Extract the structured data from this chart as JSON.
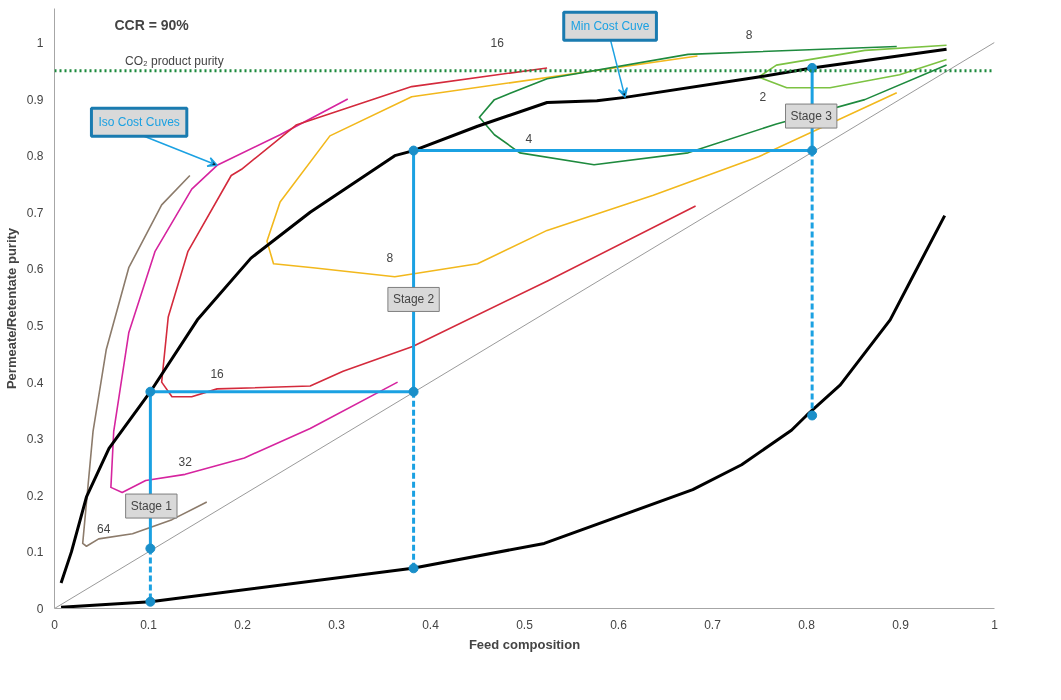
{
  "chart_data": {
    "type": "line",
    "title": "CCR = 90%",
    "xlabel": "Feed composition",
    "ylabel": "Permeate/Retentate purity",
    "xlim": [
      0,
      1
    ],
    "ylim": [
      0,
      1.06
    ],
    "xticks": [
      0,
      0.1,
      0.2,
      0.3,
      0.4,
      0.5,
      0.6,
      0.7,
      0.8,
      0.9,
      1
    ],
    "yticks": [
      0,
      0.1,
      0.2,
      0.3,
      0.4,
      0.5,
      0.6,
      0.7,
      0.8,
      0.9,
      1
    ],
    "grid": false,
    "series": [
      {
        "color": "#808080",
        "x": [
          0,
          1
        ],
        "values": [
          0,
          1
        ]
      },
      {
        "color": "#8c7b6b",
        "x": [
          0.144,
          0.114,
          0.079,
          0.055,
          0.041,
          0.03,
          0.034,
          0.047,
          0.083,
          0.125,
          0.162
        ],
        "values": [
          0.765,
          0.713,
          0.602,
          0.457,
          0.313,
          0.115,
          0.11,
          0.123,
          0.132,
          0.157,
          0.188
        ]
      },
      {
        "color": "#d6249f",
        "x": [
          0.312,
          0.24,
          0.173,
          0.146,
          0.107,
          0.079,
          0.063,
          0.06,
          0.072,
          0.097,
          0.139,
          0.202,
          0.272,
          0.365
        ],
        "values": [
          0.9,
          0.837,
          0.783,
          0.741,
          0.631,
          0.487,
          0.313,
          0.214,
          0.205,
          0.226,
          0.237,
          0.266,
          0.318,
          0.4
        ]
      },
      {
        "color": "#d42a3c",
        "x": [
          0.524,
          0.38,
          0.257,
          0.199,
          0.188,
          0.142,
          0.121,
          0.114,
          0.125,
          0.146,
          0.173,
          0.272,
          0.307,
          0.381,
          0.525,
          0.682
        ],
        "values": [
          0.955,
          0.922,
          0.854,
          0.776,
          0.765,
          0.631,
          0.515,
          0.4,
          0.374,
          0.374,
          0.388,
          0.393,
          0.419,
          0.463,
          0.579,
          0.711
        ]
      },
      {
        "color": "#f2b81c",
        "x": [
          0.684,
          0.38,
          0.293,
          0.24,
          0.226,
          0.233,
          0.275,
          0.362,
          0.45,
          0.524,
          0.637,
          0.749,
          0.896
        ],
        "values": [
          0.976,
          0.904,
          0.835,
          0.718,
          0.649,
          0.609,
          0.602,
          0.586,
          0.609,
          0.668,
          0.73,
          0.798,
          0.911
        ]
      },
      {
        "color": "#1e8a3e",
        "x": [
          0.896,
          0.674,
          0.524,
          0.468,
          0.452,
          0.468,
          0.495,
          0.574,
          0.674,
          0.768,
          0.862,
          0.949
        ],
        "values": [
          0.993,
          0.979,
          0.936,
          0.899,
          0.868,
          0.837,
          0.805,
          0.784,
          0.805,
          0.856,
          0.899,
          0.96
        ]
      },
      {
        "color": "#7cc242",
        "x": [
          0.949,
          0.862,
          0.768,
          0.749,
          0.779,
          0.825,
          0.899,
          0.949
        ],
        "values": [
          0.995,
          0.986,
          0.96,
          0.939,
          0.92,
          0.92,
          0.943,
          0.97
        ]
      },
      {
        "color": "#000000",
        "x": [
          0.007,
          0.102,
          0.381,
          0.521,
          0.679,
          0.731,
          0.784,
          0.8,
          0.836,
          0.889,
          0.911,
          0.947
        ],
        "values": [
          0.002,
          0.012,
          0.071,
          0.115,
          0.21,
          0.254,
          0.315,
          0.341,
          0.395,
          0.51,
          0.58,
          0.694
        ]
      },
      {
        "color": "#000000",
        "x": [
          0.007,
          0.018,
          0.034,
          0.058,
          0.102,
          0.152,
          0.209,
          0.272,
          0.362,
          0.382,
          0.45,
          0.524,
          0.577,
          0.607,
          0.749,
          0.806,
          0.949
        ],
        "values": [
          0.045,
          0.1,
          0.197,
          0.283,
          0.383,
          0.51,
          0.619,
          0.7,
          0.8,
          0.809,
          0.852,
          0.894,
          0.897,
          0.903,
          0.939,
          0.955,
          0.988
        ]
      },
      {
        "color": "#1ba1e2",
        "x": [
          0.102,
          0.102,
          0.382,
          0.382,
          0.806,
          0.806
        ],
        "values": [
          0.106,
          0.383,
          0.383,
          0.809,
          0.809,
          0.955
        ]
      },
      {
        "color": "#1ba1e2",
        "line_style": "dashed",
        "x": [
          0.102,
          0.102,
          0.2,
          0.382,
          0.382,
          0.6,
          0.806,
          0.806
        ],
        "values": [
          0.106,
          0.012,
          null,
          0.383,
          0.071,
          null,
          0.809,
          0.341
        ]
      },
      {
        "type": "scatter",
        "marker": "circle",
        "color": "#1a8fc9",
        "x": [
          0.102,
          0.102,
          0.102,
          0.382,
          0.382,
          0.382,
          0.806,
          0.806,
          0.806
        ],
        "values": [
          0.383,
          0.106,
          0.012,
          0.809,
          0.383,
          0.071,
          0.955,
          0.809,
          0.341
        ]
      }
    ],
    "ref_lines": [
      {
        "axis": "y",
        "value": 0.95,
        "label": "CO₂ product purity",
        "color": "#1e8a3e",
        "line_style": "dotted"
      }
    ],
    "annotations": [
      {
        "text": "64",
        "x": 0.047,
        "y": 0.123
      },
      {
        "text": "32",
        "x": 0.139,
        "y": 0.237
      },
      {
        "text": "16",
        "x": 0.173,
        "y": 0.388
      },
      {
        "text": "8",
        "x": 0.362,
        "y": 0.586
      },
      {
        "text": "4",
        "x": 0.495,
        "y": 0.805
      },
      {
        "text": "2",
        "x": 0.779,
        "y": 0.92
      },
      {
        "text": "Stage 1",
        "x": 0.103,
        "y": 0.181
      },
      {
        "text": "Stage 2",
        "x": 0.382,
        "y": 0.546
      },
      {
        "text": "Stage 3",
        "x": 0.805,
        "y": 0.87
      },
      {
        "text": "Iso Cost Cuves",
        "x": 0.173,
        "y": 0.783
      },
      {
        "text": "Min Cost Cuve",
        "x": 0.607,
        "y": 0.903
      },
      "16",
      "8"
    ]
  }
}
